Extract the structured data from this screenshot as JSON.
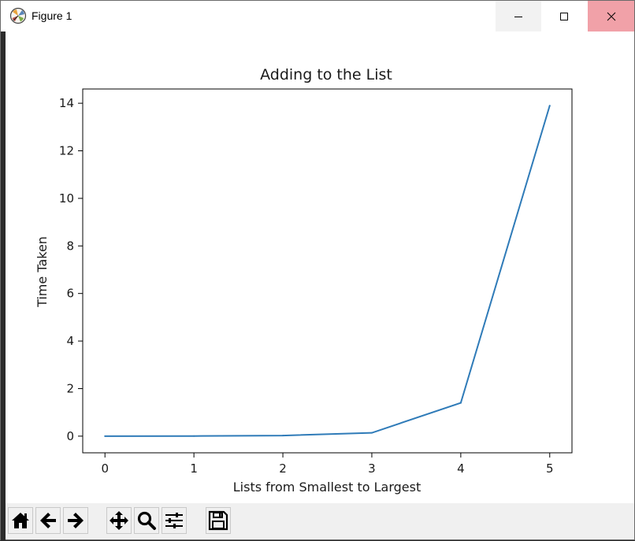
{
  "window": {
    "title": "Figure 1",
    "minimize_icon": "minimize-icon",
    "maximize_icon": "maximize-icon",
    "close_icon": "close-icon",
    "close_hover_color": "#f1a1a8"
  },
  "toolbar": {
    "buttons": [
      {
        "name": "home-button",
        "icon": "home-icon"
      },
      {
        "name": "back-button",
        "icon": "arrow-left-icon"
      },
      {
        "name": "forward-button",
        "icon": "arrow-right-icon"
      },
      {
        "name": "pan-button",
        "icon": "move-icon"
      },
      {
        "name": "zoom-button",
        "icon": "magnifier-icon"
      },
      {
        "name": "configure-subplots-button",
        "icon": "sliders-icon"
      },
      {
        "name": "save-button",
        "icon": "floppy-disk-icon"
      }
    ]
  },
  "chart_data": {
    "type": "line",
    "title": "Adding to the List",
    "xlabel": "Lists from Smallest to Largest",
    "ylabel": "Time Taken",
    "x": [
      0,
      1,
      2,
      3,
      4,
      5
    ],
    "series": [
      {
        "name": "time",
        "color": "#2f7bb8",
        "values": [
          0.0,
          0.005,
          0.025,
          0.14,
          1.4,
          13.9
        ]
      }
    ],
    "xlim": [
      -0.25,
      5.25
    ],
    "ylim": [
      -0.7,
      14.6
    ],
    "xticks": [
      0,
      1,
      2,
      3,
      4,
      5
    ],
    "yticks": [
      0,
      2,
      4,
      6,
      8,
      10,
      12,
      14
    ],
    "grid": false,
    "legend": "none"
  }
}
